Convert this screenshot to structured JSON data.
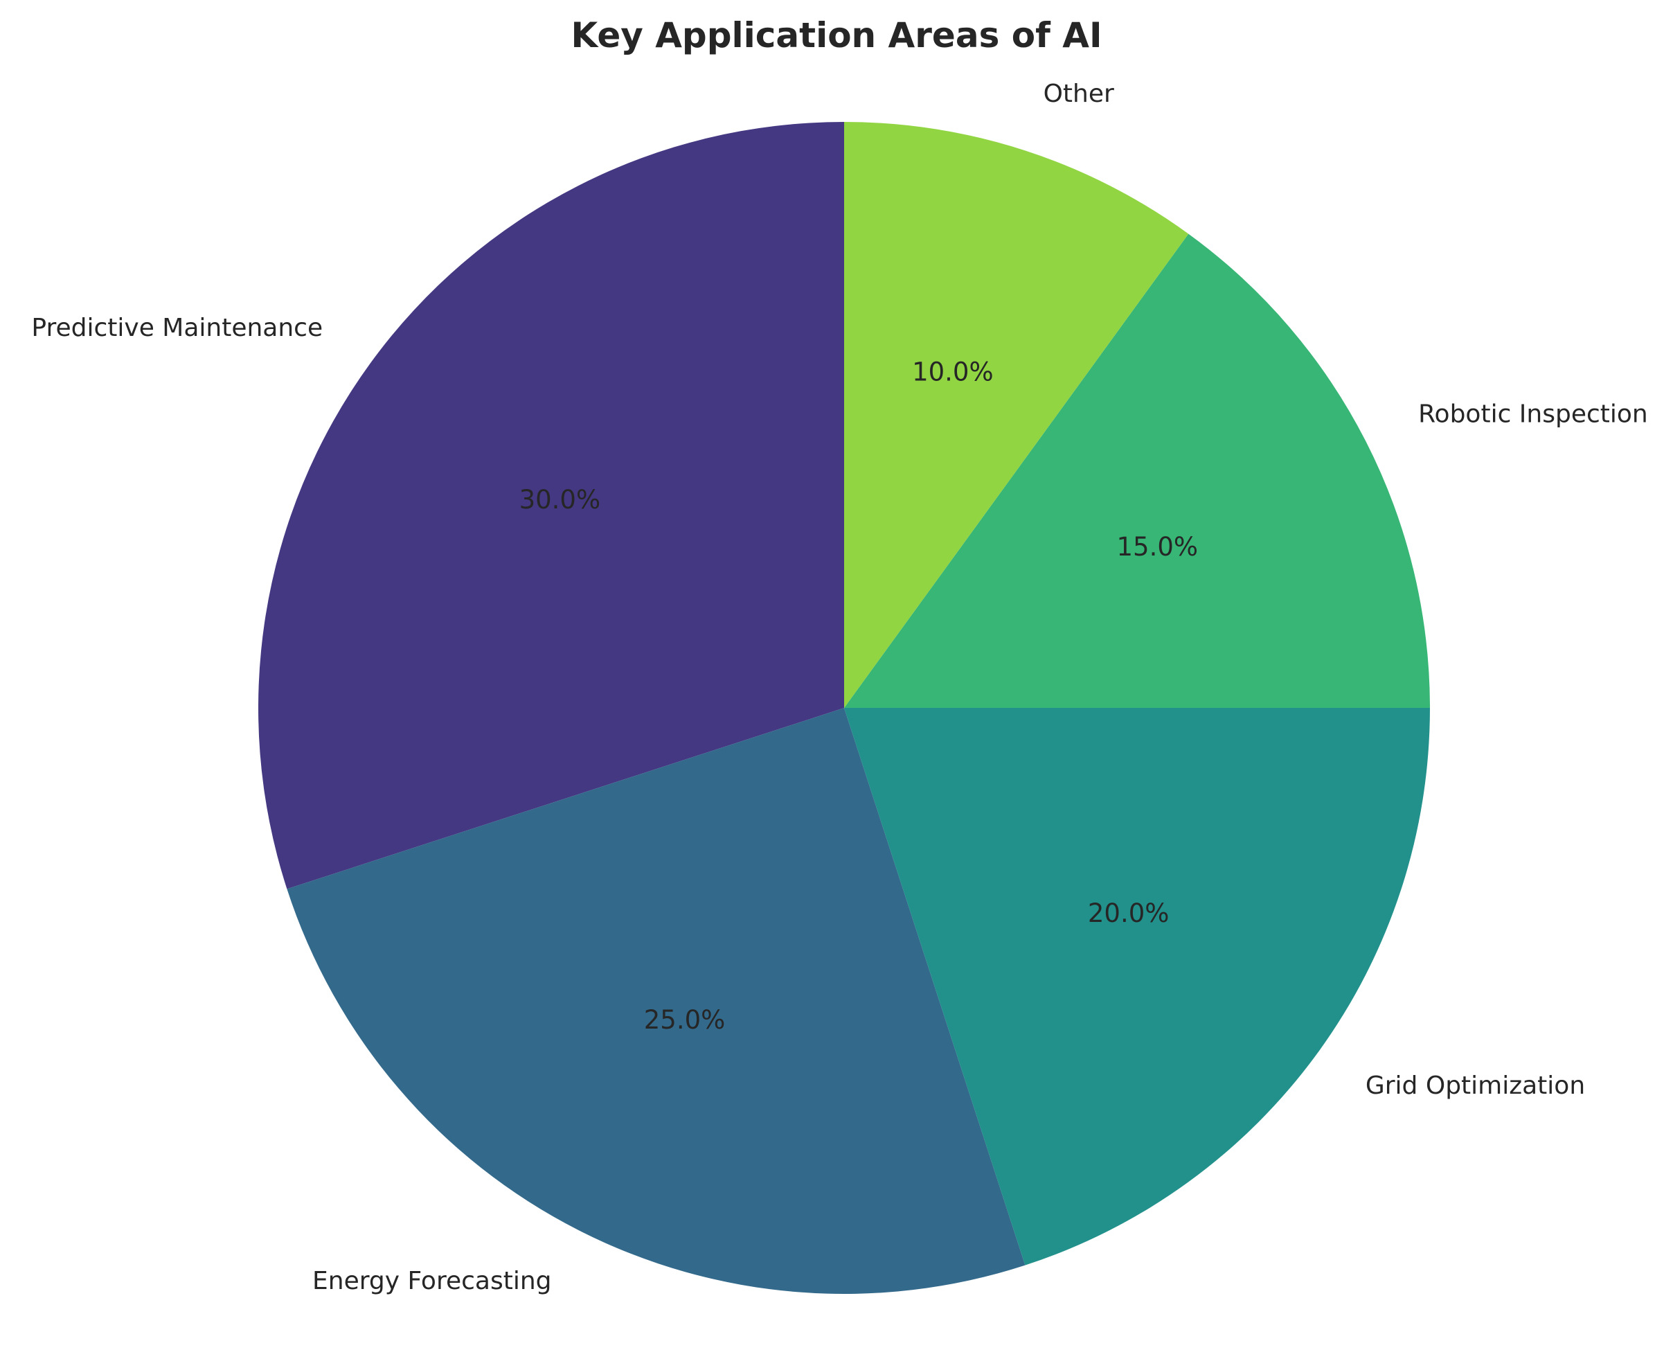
{
  "chart_data": {
    "type": "pie",
    "title": "Key Application Areas of AI",
    "categories": [
      "Predictive Maintenance",
      "Energy Forecasting",
      "Grid Optimization",
      "Robotic Inspection",
      "Other"
    ],
    "values": [
      30,
      25,
      20,
      15,
      10
    ],
    "percent_labels": [
      "30.0%",
      "25.0%",
      "20.0%",
      "15.0%",
      "10.0%"
    ],
    "colors": [
      "#453882",
      "#336a8c",
      "#22918b",
      "#38b676",
      "#91d543"
    ],
    "start_angle_deg": 90,
    "direction": "counterclockwise"
  }
}
